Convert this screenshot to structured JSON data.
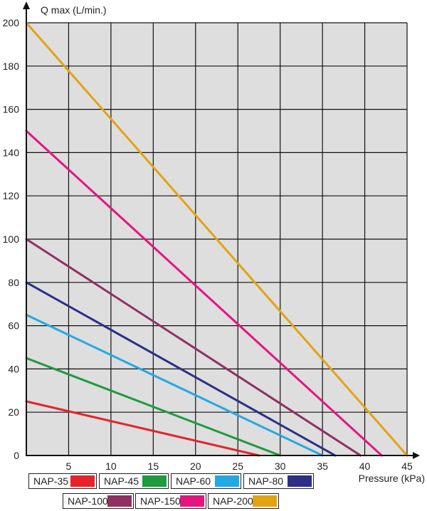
{
  "chart_data": {
    "type": "line",
    "title": "",
    "xlabel": "Pressure (kPa)",
    "ylabel": "Q max (L/min.)",
    "xlim": [
      0,
      45
    ],
    "ylim": [
      0,
      200
    ],
    "x_ticks": [
      "5",
      "10",
      "15",
      "20",
      "25",
      "30",
      "35",
      "40",
      "45"
    ],
    "y_ticks": [
      "0",
      "20",
      "40",
      "60",
      "80",
      "100",
      "120",
      "140",
      "160",
      "180",
      "200"
    ],
    "grid": true,
    "legend_placement": "bottom",
    "series": [
      {
        "name": "NAP-35",
        "color": "#e8222b",
        "x": [
          0,
          27.5
        ],
        "y": [
          25,
          0
        ]
      },
      {
        "name": "NAP-45",
        "color": "#1f9a3d",
        "x": [
          0,
          30
        ],
        "y": [
          45,
          0
        ]
      },
      {
        "name": "NAP-60",
        "color": "#22a9e2",
        "x": [
          0,
          35
        ],
        "y": [
          65,
          0
        ]
      },
      {
        "name": "NAP-80",
        "color": "#2b2f86",
        "x": [
          0,
          36.5
        ],
        "y": [
          80,
          0
        ]
      },
      {
        "name": "NAP-100",
        "color": "#8f3063",
        "x": [
          0,
          39.5
        ],
        "y": [
          100,
          0
        ]
      },
      {
        "name": "NAP-150",
        "color": "#e5157f",
        "x": [
          0,
          42
        ],
        "y": [
          150,
          0
        ]
      },
      {
        "name": "NAP-200",
        "color": "#e2a312",
        "x": [
          0,
          45
        ],
        "y": [
          200,
          0
        ]
      }
    ]
  },
  "colors": {
    "plot_background": "#dedede",
    "grid": "#111111",
    "axis": "#111111"
  }
}
